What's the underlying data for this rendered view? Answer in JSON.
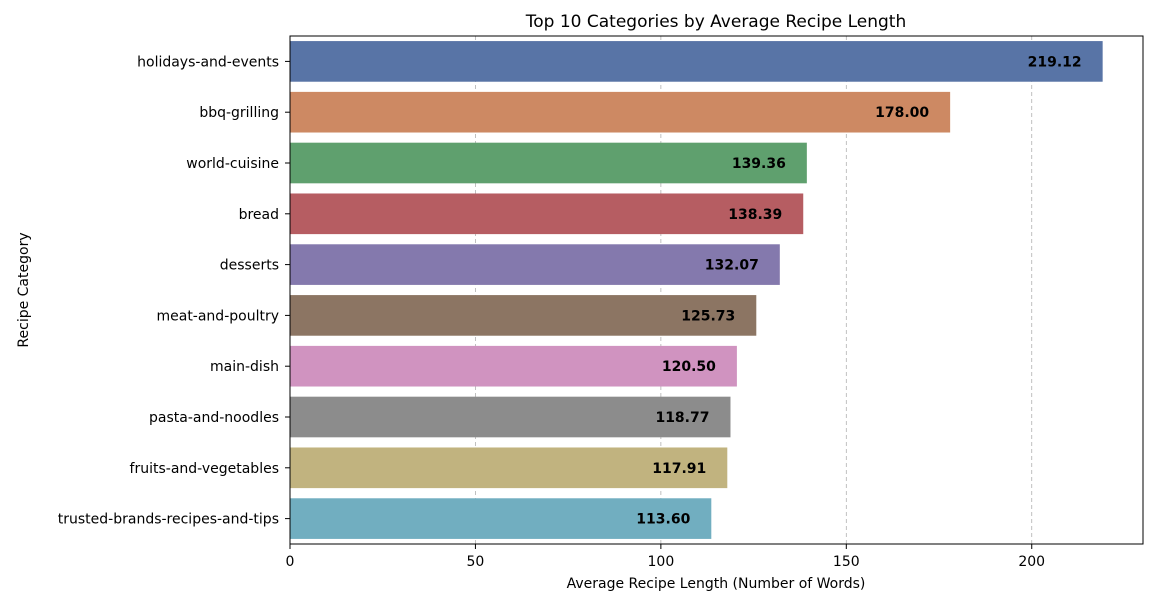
{
  "chart_data": {
    "type": "bar",
    "orientation": "horizontal",
    "title": "Top 10 Categories by Average Recipe Length",
    "xlabel": "Average Recipe Length (Number of Words)",
    "ylabel": "Recipe Category",
    "xlim": [
      0,
      230
    ],
    "xticks": [
      0,
      50,
      100,
      150,
      200
    ],
    "grid": "x-dashed",
    "categories": [
      "holidays-and-events",
      "bbq-grilling",
      "world-cuisine",
      "bread",
      "desserts",
      "meat-and-poultry",
      "main-dish",
      "pasta-and-noodles",
      "fruits-and-vegetables",
      "trusted-brands-recipes-and-tips"
    ],
    "values": [
      219.12,
      178.0,
      139.36,
      138.39,
      132.07,
      125.73,
      120.5,
      118.77,
      117.91,
      113.6
    ],
    "value_labels": [
      "219.12",
      "178.00",
      "139.36",
      "138.39",
      "132.07",
      "125.73",
      "120.50",
      "118.77",
      "117.91",
      "113.60"
    ],
    "colors": [
      "#5874a6",
      "#cd8963",
      "#5fa06e",
      "#b65d62",
      "#8479ad",
      "#8c7563",
      "#d093c0",
      "#8c8c8c",
      "#c1b37f",
      "#71aec0"
    ]
  }
}
